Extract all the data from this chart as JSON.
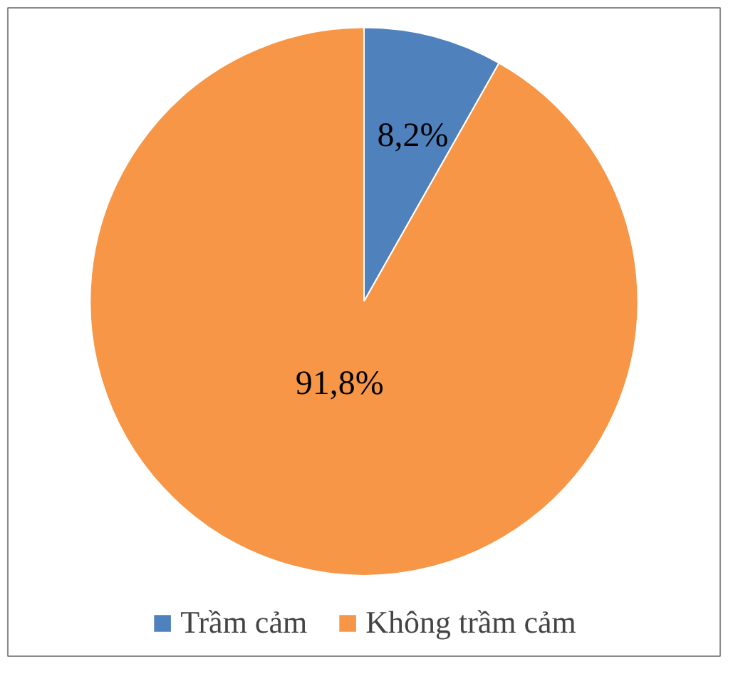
{
  "chart_data": {
    "type": "pie",
    "categories": [
      "Trầm cảm",
      "Không trầm cảm"
    ],
    "values": [
      8.2,
      91.8
    ],
    "colors": [
      "#4f81bd",
      "#f79646"
    ],
    "value_labels": [
      "8,2%",
      "91,8%"
    ],
    "legend": "bottom"
  }
}
